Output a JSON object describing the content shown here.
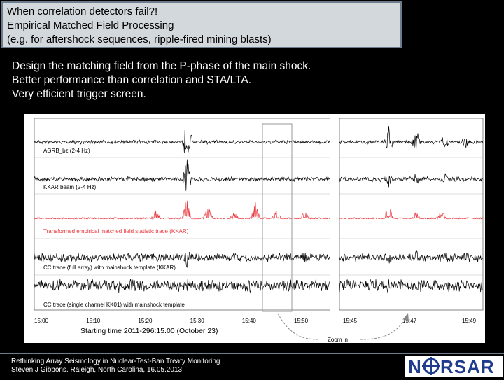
{
  "title": {
    "line1": "When correlation detectors fail?!",
    "line2": "Empirical Matched Field Processing",
    "line3": "(e.g. for aftershock sequences, ripple-fired mining blasts)"
  },
  "bullets": [
    "Design the matching field from the P-phase of the main shock.",
    "Better performance than correlation and STA/LTA.",
    "Very efficient trigger screen."
  ],
  "figure": {
    "traces": [
      {
        "label": "AGRB_bz (2-4 Hz)",
        "color": "#000000"
      },
      {
        "label": "KKAR beam (2-4 Hz)",
        "color": "#000000"
      },
      {
        "label": "Transformed empirical matched field statistic trace (KKAR)",
        "color": "#e8383d"
      },
      {
        "label": "CC trace (full array) with mainshock template (KKAR)",
        "color": "#000000"
      },
      {
        "label": "CC trace (single channel KK01) with mainshock template",
        "color": "#000000"
      }
    ],
    "left_ticks": [
      "15:00",
      "15:10",
      "15:20",
      "15:30",
      "15:40",
      "15:50"
    ],
    "right_ticks": [
      "15:45",
      "15:47",
      "15:49"
    ],
    "starting_time": "Starting time 2011-296:15.00 (October 23)",
    "zoom_label": "Zoom in"
  },
  "footer": {
    "line1": "Rethinking Array Seismology in Nuclear-Test-Ban Treaty Monitoring",
    "line2": "Steven J Gibbons. Raleigh, North Carolina, 16.05.2013"
  },
  "logo": {
    "text": "NORSAR",
    "color": "#1f3b8c"
  }
}
